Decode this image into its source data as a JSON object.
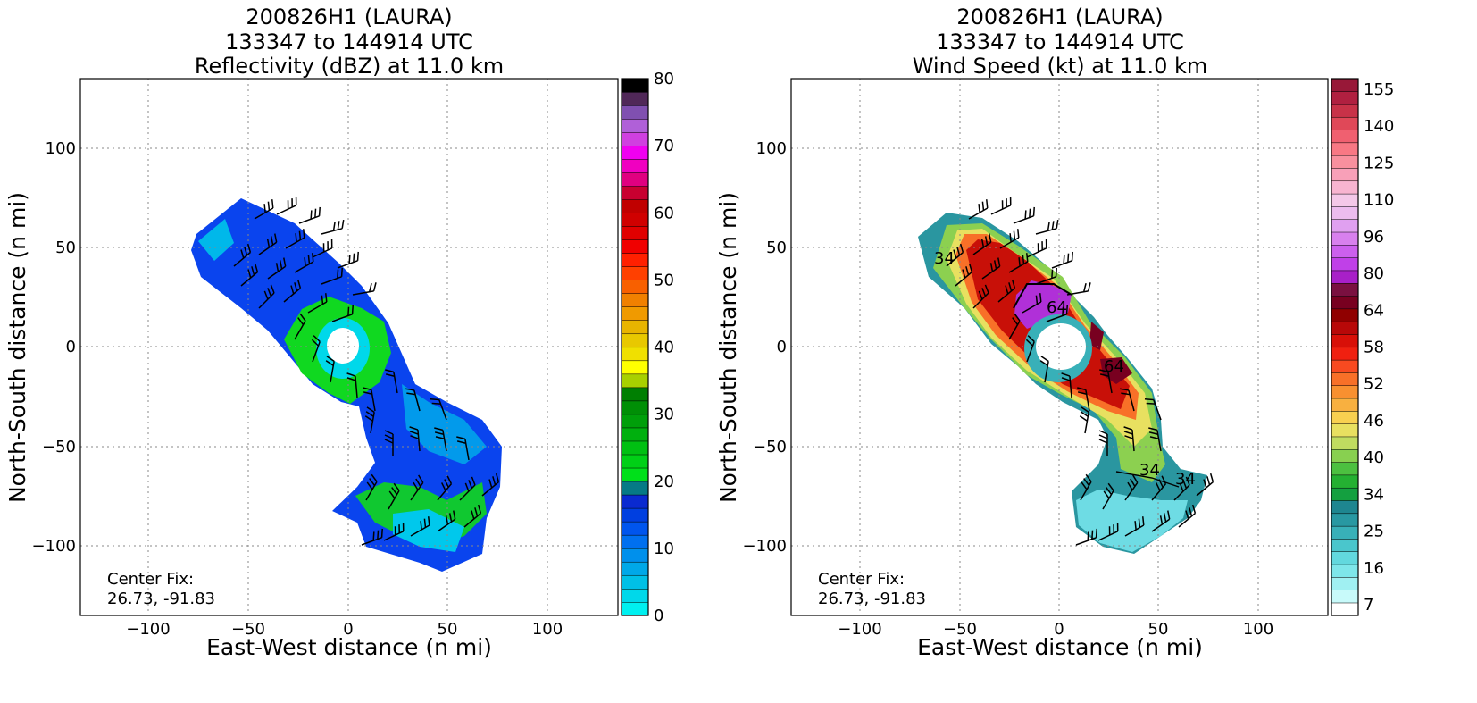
{
  "chart_data": [
    {
      "type": "heatmap",
      "title_lines": [
        "200826H1 (LAURA)",
        "133347 to 144914 UTC",
        "Reflectivity (dBZ) at 11.0 km"
      ],
      "xlabel": "East-West distance (n mi)",
      "ylabel": "North-South distance (n mi)",
      "xlim": [
        -135,
        135
      ],
      "ylim": [
        -135,
        135
      ],
      "xticks": [
        -100,
        -50,
        0,
        50,
        100
      ],
      "yticks": [
        -100,
        -50,
        0,
        50,
        100
      ],
      "xtick_labels": [
        "−100",
        "−50",
        "0",
        "50",
        "100"
      ],
      "ytick_labels": [
        "−100",
        "−50",
        "0",
        "50",
        "100"
      ],
      "grid": true,
      "annotation": [
        "Center Fix:",
        "26.73, -91.83"
      ],
      "colorbar": {
        "range": [
          0,
          80
        ],
        "tick_values": [
          0,
          10,
          20,
          30,
          40,
          50,
          60,
          70,
          80
        ],
        "tick_labels": [
          "0",
          "10",
          "20",
          "30",
          "40",
          "50",
          "60",
          "70",
          "80"
        ],
        "colors": [
          "#00f0f0",
          "#00d8ea",
          "#00c0e6",
          "#00a8e8",
          "#0090ec",
          "#0070f0",
          "#0055ee",
          "#003fe0",
          "#0a2ad0",
          "#067a86",
          "#00e01a",
          "#00d016",
          "#00c012",
          "#00b00e",
          "#009f0a",
          "#008f06",
          "#007f02",
          "#a8d000",
          "#ffff00",
          "#f0e000",
          "#e8c800",
          "#e8b400",
          "#f09a00",
          "#f08000",
          "#f86000",
          "#ff4000",
          "#ff2000",
          "#f00000",
          "#e00000",
          "#d00000",
          "#c00000",
          "#c80030",
          "#e00080",
          "#f000c0",
          "#f000f0",
          "#d040e0",
          "#b060d8",
          "#8050b0",
          "#502858",
          "#000000"
        ]
      },
      "features": [
        "storm echo swath",
        "wind barbs"
      ]
    },
    {
      "type": "heatmap",
      "title_lines": [
        "200826H1 (LAURA)",
        "133347 to 144914 UTC",
        "Wind Speed (kt) at 11.0 km"
      ],
      "xlabel": "East-West distance (n mi)",
      "ylabel": "North-South distance (n mi)",
      "xlim": [
        -135,
        135
      ],
      "ylim": [
        -135,
        135
      ],
      "xticks": [
        -100,
        -50,
        0,
        50,
        100
      ],
      "yticks": [
        -100,
        -50,
        0,
        50,
        100
      ],
      "xtick_labels": [
        "−100",
        "−50",
        "0",
        "50",
        "100"
      ],
      "ytick_labels": [
        "−100",
        "−50",
        "0",
        "50",
        "100"
      ],
      "grid": true,
      "annotation": [
        "Center Fix:",
        "26.73, -91.83"
      ],
      "contour_labels": [
        "34",
        "64",
        "64",
        "34",
        "34"
      ],
      "colorbar": {
        "tick_labels": [
          "7",
          "16",
          "25",
          "34",
          "40",
          "46",
          "52",
          "58",
          "64",
          "80",
          "96",
          "110",
          "125",
          "140",
          "155"
        ],
        "colors": [
          "#ffffff",
          "#c8fafa",
          "#a0f0f2",
          "#7ee6ea",
          "#62d8de",
          "#4ac6cc",
          "#38b0b8",
          "#2898a2",
          "#1e8690",
          "#14a040",
          "#24b032",
          "#4cc040",
          "#88d050",
          "#c0dc60",
          "#e8e060",
          "#f8d050",
          "#f8b040",
          "#f89030",
          "#f87028",
          "#f84a20",
          "#f02010",
          "#d81008",
          "#b80808",
          "#900000",
          "#780020",
          "#7a1040",
          "#a820c8",
          "#c040e8",
          "#cc60ee",
          "#d880ee",
          "#e0a0f0",
          "#ecbcee",
          "#f4c8e8",
          "#f8b4d0",
          "#f8a0b8",
          "#f8909e",
          "#f87884",
          "#f06070",
          "#e04858",
          "#c83248",
          "#b02040",
          "#981838"
        ]
      },
      "features": [
        "wind speed swath",
        "wind barbs",
        "contours"
      ]
    }
  ]
}
